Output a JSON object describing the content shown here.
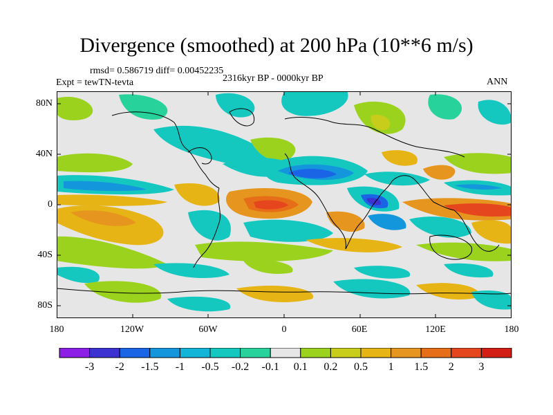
{
  "title": "Divergence (smoothed) at 200 hPa (10**6 m/s)",
  "stats_line": "rmsd= 0.586719 diff= 0.00452235",
  "experiment_line": "Expt = tewTN-tevta",
  "period_line": "2316kyr BP - 0000kyr BP",
  "season": "ANN",
  "axes": {
    "lat_ticks": [
      "80N",
      "40N",
      "0",
      "40S",
      "80S"
    ],
    "lon_ticks": [
      "180",
      "120W",
      "60W",
      "0",
      "60E",
      "120E",
      "180"
    ]
  },
  "colorbar": {
    "labels": [
      "-3",
      "-2",
      "-1.5",
      "-1",
      "-0.5",
      "-0.2",
      "-0.1",
      "0.1",
      "0.2",
      "0.5",
      "1",
      "1.5",
      "2",
      "3"
    ],
    "colors": [
      "#8c1ee6",
      "#3c32d2",
      "#1a64e6",
      "#1496dc",
      "#12b4d8",
      "#14c8c0",
      "#28d29b",
      "#e6e6e6",
      "#9bd21e",
      "#c8cd1c",
      "#e6b414",
      "#e6961e",
      "#e66e19",
      "#e6461e",
      "#d21e14"
    ]
  }
}
